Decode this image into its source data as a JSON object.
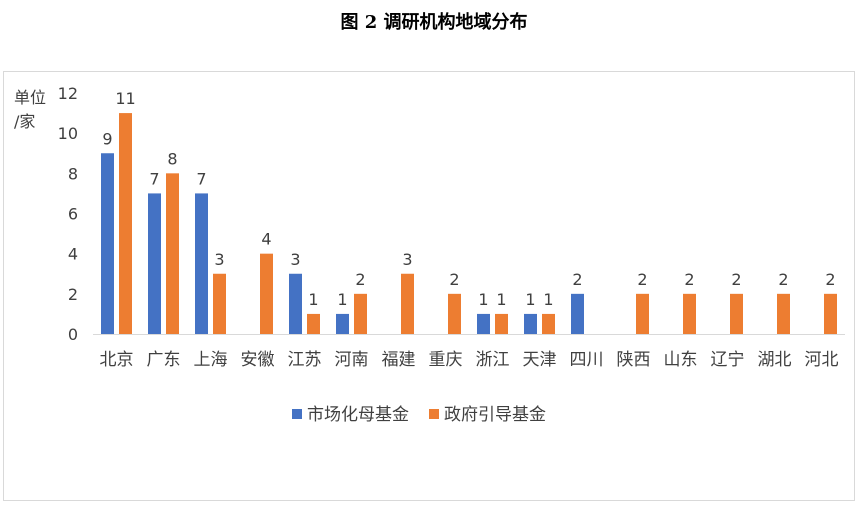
{
  "title": "图 2 调研机构地域分布",
  "chart_data": {
    "type": "bar",
    "title": "图 2 调研机构地域分布",
    "ylabel_line1": "单位",
    "ylabel_line2": "/家",
    "ylim": [
      0,
      12
    ],
    "yticks": [
      0,
      2,
      4,
      6,
      8,
      10,
      12
    ],
    "grid": false,
    "legend": "bottom",
    "categories": [
      "北京",
      "广东",
      "上海",
      "安徽",
      "江苏",
      "河南",
      "福建",
      "重庆",
      "浙江",
      "天津",
      "四川",
      "陕西",
      "山东",
      "辽宁",
      "湖北",
      "河北"
    ],
    "series": [
      {
        "name": "市场化母基金",
        "color": "#4472c4",
        "values": [
          9,
          7,
          7,
          null,
          3,
          1,
          null,
          null,
          1,
          1,
          2,
          null,
          null,
          null,
          null,
          null
        ]
      },
      {
        "name": "政府引导基金",
        "color": "#ed7d31",
        "values": [
          11,
          8,
          3,
          4,
          1,
          2,
          3,
          2,
          1,
          1,
          null,
          2,
          2,
          2,
          2,
          2
        ]
      }
    ]
  }
}
